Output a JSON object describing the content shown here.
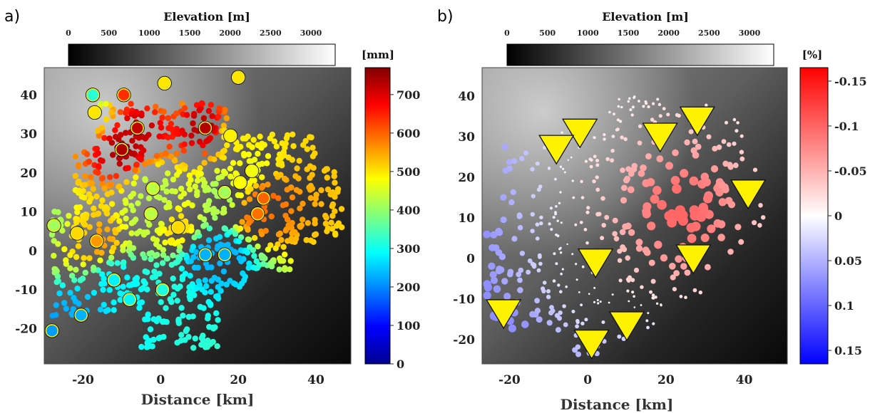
{
  "chart_data": [
    {
      "panel": "a)",
      "type": "scatter",
      "xlabel": "Distance [km]",
      "x_ticks": [
        "-20",
        "0",
        "20",
        "40"
      ],
      "y_ticks": [
        "40",
        "30",
        "20",
        "10",
        "0",
        "-10",
        "-20"
      ],
      "xlim": [
        -30,
        49
      ],
      "ylim": [
        -29,
        47
      ],
      "elevation_colorbar": {
        "title": "Elevation [m]",
        "ticks": [
          "0",
          "500",
          "1000",
          "1500",
          "2000",
          "2500",
          "3000"
        ],
        "range": [
          0,
          3300
        ]
      },
      "value_colorbar": {
        "unit": "[mm]",
        "ticks": [
          "700",
          "600",
          "500",
          "400",
          "300",
          "200",
          "100",
          "0"
        ],
        "range": [
          0,
          770
        ],
        "colormap": "jet"
      },
      "stations": [
        {
          "x": 1,
          "y": 43,
          "v": 500
        },
        {
          "x": 20,
          "y": 44.5,
          "v": 500
        },
        {
          "x": -17.5,
          "y": 40,
          "v": 320
        },
        {
          "x": -9.5,
          "y": 40,
          "v": 640
        },
        {
          "x": -17,
          "y": 35.5,
          "v": 500
        },
        {
          "x": -6,
          "y": 31.5,
          "v": 720
        },
        {
          "x": 11.5,
          "y": 31.5,
          "v": 730
        },
        {
          "x": 18,
          "y": 29.5,
          "v": 490
        },
        {
          "x": -10,
          "y": 26,
          "v": 735
        },
        {
          "x": 23.5,
          "y": 20.5,
          "v": 470
        },
        {
          "x": -2,
          "y": 16,
          "v": 430
        },
        {
          "x": 20.5,
          "y": 17.5,
          "v": 480
        },
        {
          "x": 16.5,
          "y": 15,
          "v": 410
        },
        {
          "x": 26.5,
          "y": 13.5,
          "v": 600
        },
        {
          "x": -2.5,
          "y": 9.5,
          "v": 430
        },
        {
          "x": 25,
          "y": 9.5,
          "v": 590
        },
        {
          "x": 4.5,
          "y": 6,
          "v": 510
        },
        {
          "x": -27.5,
          "y": 6.5,
          "v": 410
        },
        {
          "x": -21.5,
          "y": 4.5,
          "v": 510
        },
        {
          "x": -16.5,
          "y": 2.5,
          "v": 560
        },
        {
          "x": 11.5,
          "y": -1,
          "v": 230
        },
        {
          "x": 16.5,
          "y": -1,
          "v": 230
        },
        {
          "x": -12,
          "y": -7.5,
          "v": 280
        },
        {
          "x": -8,
          "y": -12.5,
          "v": 285
        },
        {
          "x": 0.5,
          "y": -10,
          "v": 310
        },
        {
          "x": -20.5,
          "y": -16.5,
          "v": 230
        },
        {
          "x": -28,
          "y": -20.5,
          "v": 215
        }
      ]
    },
    {
      "panel": "b)",
      "type": "scatter",
      "xlabel": "Distance [km]",
      "x_ticks": [
        "-20",
        "0",
        "20",
        "40"
      ],
      "y_ticks": [
        "40",
        "30",
        "20",
        "10",
        "0",
        "-10",
        "-20"
      ],
      "xlim": [
        -27,
        51
      ],
      "ylim": [
        -26,
        47
      ],
      "elevation_colorbar": {
        "title": "Elevation [m]",
        "ticks": [
          "0",
          "500",
          "1000",
          "1500",
          "2000",
          "2500",
          "3000"
        ],
        "range": [
          0,
          3300
        ]
      },
      "value_colorbar": {
        "unit": "[%]",
        "ticks": [
          "-0.15",
          "-0.1",
          "-0.05",
          "0",
          "0.05",
          "0.1",
          "0.15"
        ],
        "range": [
          -0.165,
          0.165
        ],
        "colormap": "red-white-blue"
      },
      "triangles": [
        {
          "x": -2,
          "y": 31.5
        },
        {
          "x": -8,
          "y": 27.5
        },
        {
          "x": 18.5,
          "y": 30.5
        },
        {
          "x": 28,
          "y": 34.5
        },
        {
          "x": 41,
          "y": 16.5
        },
        {
          "x": 2,
          "y": -0.5
        },
        {
          "x": 27,
          "y": 0.5
        },
        {
          "x": -21.5,
          "y": -13
        },
        {
          "x": 10,
          "y": -16
        },
        {
          "x": 1,
          "y": -20.5
        }
      ]
    }
  ]
}
